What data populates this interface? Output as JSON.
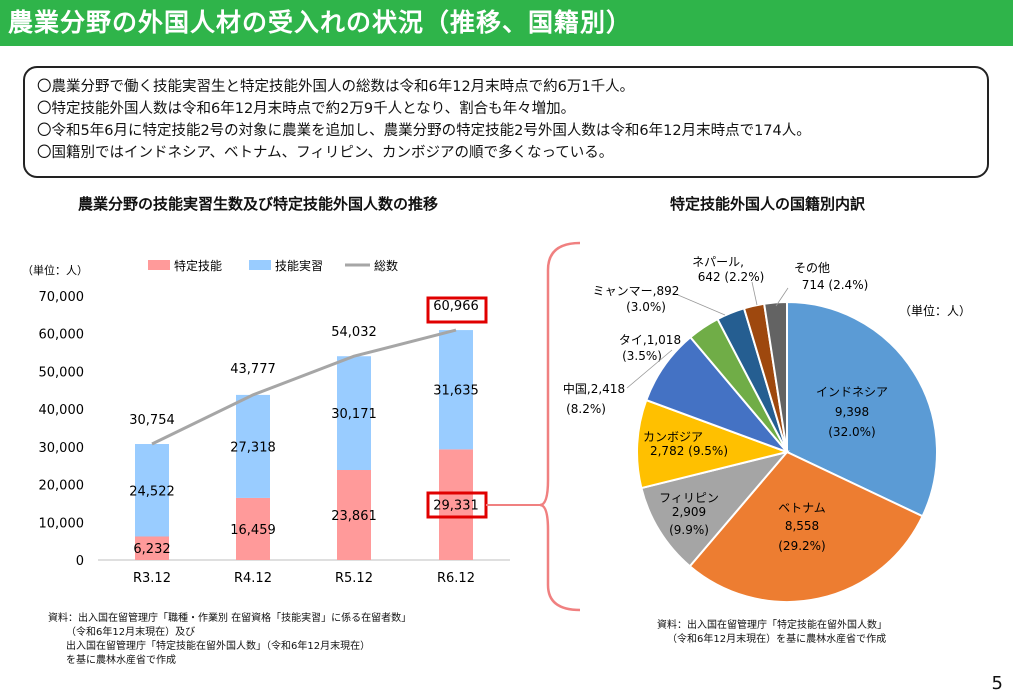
{
  "title": "農業分野の外国人材の受入れの状況（推移、国籍別）",
  "summary": [
    "〇農業分野で働く技能実習生と特定技能外国人の総数は令和6年12月末時点で約6万1千人。",
    "〇特定技能外国人数は令和6年12月末時点で約2万9千人となり、割合も年々増加。",
    "〇令和5年6月に特定技能2号の対象に農業を追加し、農業分野の特定技能2号外国人数は令和6年12月末時点で174人。",
    "〇国籍別ではインドネシア、ベトナム、フィリピン、カンボジアの順で多くなっている。"
  ],
  "bar_heading": "農業分野の技能実習生数及び特定技能外国人数の推移",
  "pie_heading": "特定技能外国人の国籍別内訳",
  "bar_note": [
    "資料：出入国在留管理庁「職種・作業別 在留資格「技能実習」に係る在留者数」",
    "（令和6年12月末現在）及び",
    "出入国在留管理庁「特定技能在留外国人数」（令和6年12月末現在）",
    "を基に農林水産省で作成"
  ],
  "pie_note": [
    "資料：出入国在留管理庁「特定技能在留外国人数」",
    "（令和6年12月末現在）を基に農林水産省で作成"
  ],
  "page_number": "5",
  "chart_data": [
    {
      "type": "bar",
      "stacked": true,
      "unit_label": "（単位：人）",
      "categories": [
        "R3.12",
        "R4.12",
        "R5.12",
        "R6.12"
      ],
      "ylim": [
        0,
        70000
      ],
      "yticks": [
        "0",
        "10,000",
        "20,000",
        "30,000",
        "40,000",
        "50,000",
        "60,000",
        "70,000"
      ],
      "legend_position": "top",
      "series": [
        {
          "name": "特定技能",
          "values": [
            6232,
            16459,
            23861,
            29331
          ],
          "labels": [
            "6,232",
            "16,459",
            "23,861",
            "29,331"
          ],
          "color": "#ff9a9a"
        },
        {
          "name": "技能実習",
          "values": [
            24522,
            27318,
            30171,
            31635
          ],
          "labels": [
            "24,522",
            "27,318",
            "30,171",
            "31,635"
          ],
          "color": "#99ccff"
        },
        {
          "name": "総数",
          "type": "line",
          "values": [
            30754,
            43777,
            54032,
            60966
          ],
          "labels": [
            "30,754",
            "43,777",
            "54,032",
            "60,966"
          ],
          "color": "#a6a6a6"
        }
      ],
      "highlight_color": "#e00000"
    },
    {
      "type": "pie",
      "unit_label": "（単位：人）",
      "slices": [
        {
          "name": "インドネシア",
          "value": 9398,
          "value_label": "9,398",
          "pct": "(32.0%)",
          "color": "#5b9bd5"
        },
        {
          "name": "ベトナム",
          "value": 8558,
          "value_label": "8,558",
          "pct": "(29.2%)",
          "color": "#ed7d31"
        },
        {
          "name": "フィリピン",
          "value": 2909,
          "value_label": "2,909",
          "pct": "(9.9%)",
          "color": "#a5a5a5"
        },
        {
          "name": "カンボジア",
          "value": 2782,
          "value_label": "2,782",
          "pct": "(9.5%)",
          "color": "#ffc000"
        },
        {
          "name": "中国",
          "value": 2418,
          "value_label": "2,418",
          "pct": "(8.2%)",
          "color": "#4472c4"
        },
        {
          "name": "タイ",
          "value": 1018,
          "value_label": "1,018",
          "pct": "(3.5%)",
          "color": "#70ad47"
        },
        {
          "name": "ミャンマー",
          "value": 892,
          "value_label": "892",
          "pct": "(3.0%)",
          "color": "#255e91"
        },
        {
          "name": "ネパール",
          "value": 642,
          "value_label": "642",
          "pct": "(2.2%)",
          "color": "#9e480e"
        },
        {
          "name": "その他",
          "value": 714,
          "value_label": "714",
          "pct": "(2.4%)",
          "color": "#636363"
        }
      ]
    }
  ]
}
